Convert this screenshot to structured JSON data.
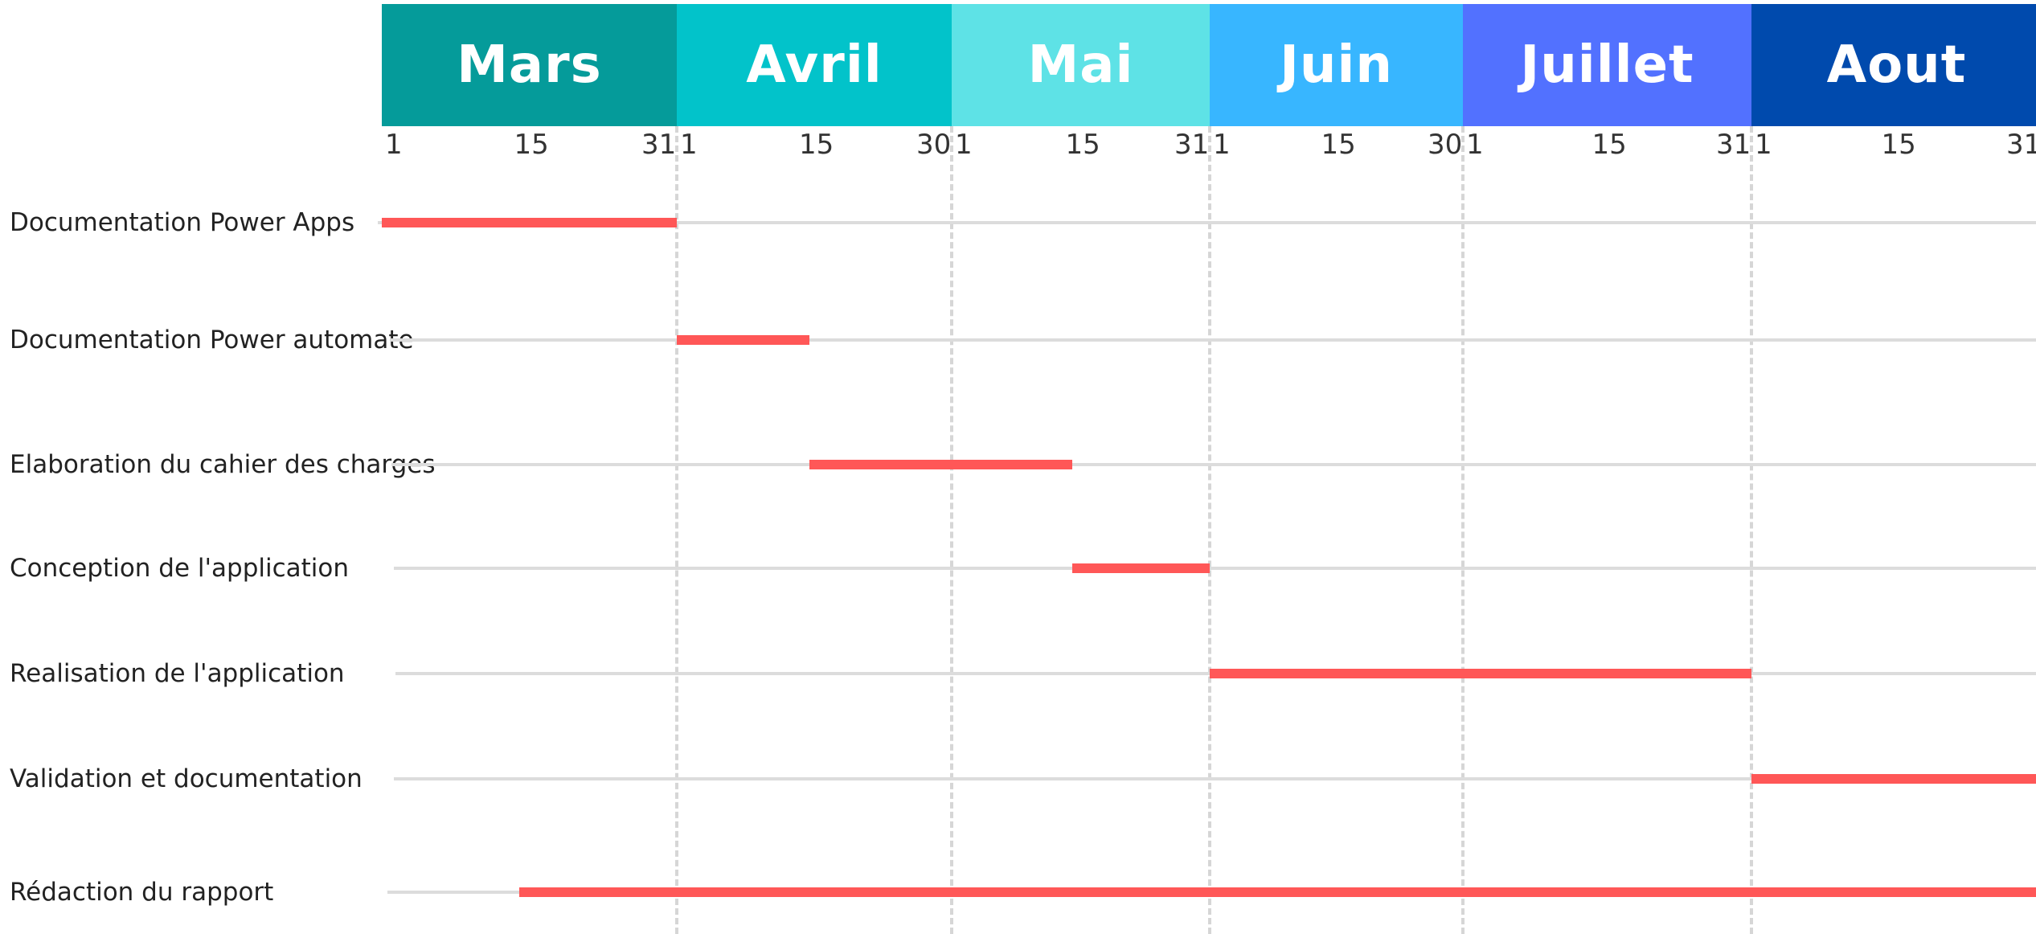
{
  "chart_data": {
    "type": "gantt",
    "months": [
      {
        "name": "Mars",
        "days": 31,
        "ticks": [
          "1",
          "15",
          "31"
        ],
        "color": "#059b9a"
      },
      {
        "name": "Avril",
        "days": 30,
        "ticks": [
          "1",
          "15",
          "30"
        ],
        "color": "#02c3ca"
      },
      {
        "name": "Mai",
        "days": 31,
        "ticks": [
          "1",
          "15",
          "31"
        ],
        "color": "#5ee2e6"
      },
      {
        "name": "Juin",
        "days": 30,
        "ticks": [
          "1",
          "15",
          "30"
        ],
        "color": "#38b6ff"
      },
      {
        "name": "Juillet",
        "days": 31,
        "ticks": [
          "1",
          "15",
          "31"
        ],
        "color": "#5271ff"
      },
      {
        "name": "Aout",
        "days": 31,
        "ticks": [
          "1",
          "15",
          "31"
        ],
        "color": "#004aad"
      }
    ],
    "tasks": [
      {
        "label": "Documentation Power Apps",
        "start": {
          "month": "Mars",
          "day": 1
        },
        "end": {
          "month": "Mars",
          "day": 31
        }
      },
      {
        "label": "Documentation Power automate",
        "start": {
          "month": "Avril",
          "day": 1
        },
        "end": {
          "month": "Avril",
          "day": 15
        }
      },
      {
        "label": "Elaboration du cahier des charges",
        "start": {
          "month": "Avril",
          "day": 15
        },
        "end": {
          "month": "Mai",
          "day": 15
        }
      },
      {
        "label": "Conception de l'application",
        "start": {
          "month": "Mai",
          "day": 15
        },
        "end": {
          "month": "Mai",
          "day": 31
        }
      },
      {
        "label": "Realisation de l'application",
        "start": {
          "month": "Juin",
          "day": 1
        },
        "end": {
          "month": "Juillet",
          "day": 31
        }
      },
      {
        "label": "Validation et documentation",
        "start": {
          "month": "Aout",
          "day": 1
        },
        "end": {
          "month": "Aout",
          "day": 31
        }
      },
      {
        "label": "Rédaction du rapport",
        "start": {
          "month": "Mars",
          "day": 15
        },
        "end": {
          "month": "Aout",
          "day": 31
        }
      }
    ],
    "bar_color": "#ff5757",
    "track_color": "#dcdcdc",
    "divider_color": "#d6d6d6"
  }
}
